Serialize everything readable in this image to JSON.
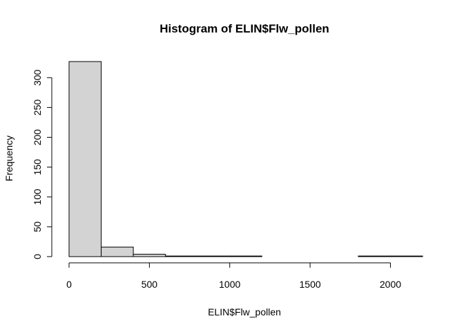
{
  "chart_data": {
    "type": "bar",
    "title": "Histogram of ELIN$Flw_pollen",
    "xlabel": "ELIN$Flw_pollen",
    "ylabel": "Frequency",
    "bins": [
      {
        "from": 0,
        "to": 200,
        "count": 327
      },
      {
        "from": 200,
        "to": 400,
        "count": 16
      },
      {
        "from": 400,
        "to": 600,
        "count": 4
      },
      {
        "from": 600,
        "to": 800,
        "count": 1
      },
      {
        "from": 800,
        "to": 1000,
        "count": 1
      },
      {
        "from": 1000,
        "to": 1200,
        "count": 1
      },
      {
        "from": 1200,
        "to": 1400,
        "count": 0
      },
      {
        "from": 1400,
        "to": 1600,
        "count": 0
      },
      {
        "from": 1600,
        "to": 1800,
        "count": 0
      },
      {
        "from": 1800,
        "to": 2000,
        "count": 1
      },
      {
        "from": 2000,
        "to": 2200,
        "count": 1
      }
    ],
    "x_ticks": [
      0,
      500,
      1000,
      1500,
      2000
    ],
    "x_tick_labels": [
      "0",
      "500",
      "1000",
      "1500",
      "2000"
    ],
    "y_ticks": [
      0,
      50,
      100,
      150,
      200,
      250,
      300
    ],
    "y_tick_labels": [
      "0",
      "50",
      "100",
      "150",
      "200",
      "250",
      "300"
    ],
    "xlim": [
      0,
      2200
    ],
    "ylim": [
      0,
      327
    ],
    "bar_fill": "#d3d3d3",
    "bar_edge": "#000000",
    "grid": false,
    "legend": "none"
  }
}
